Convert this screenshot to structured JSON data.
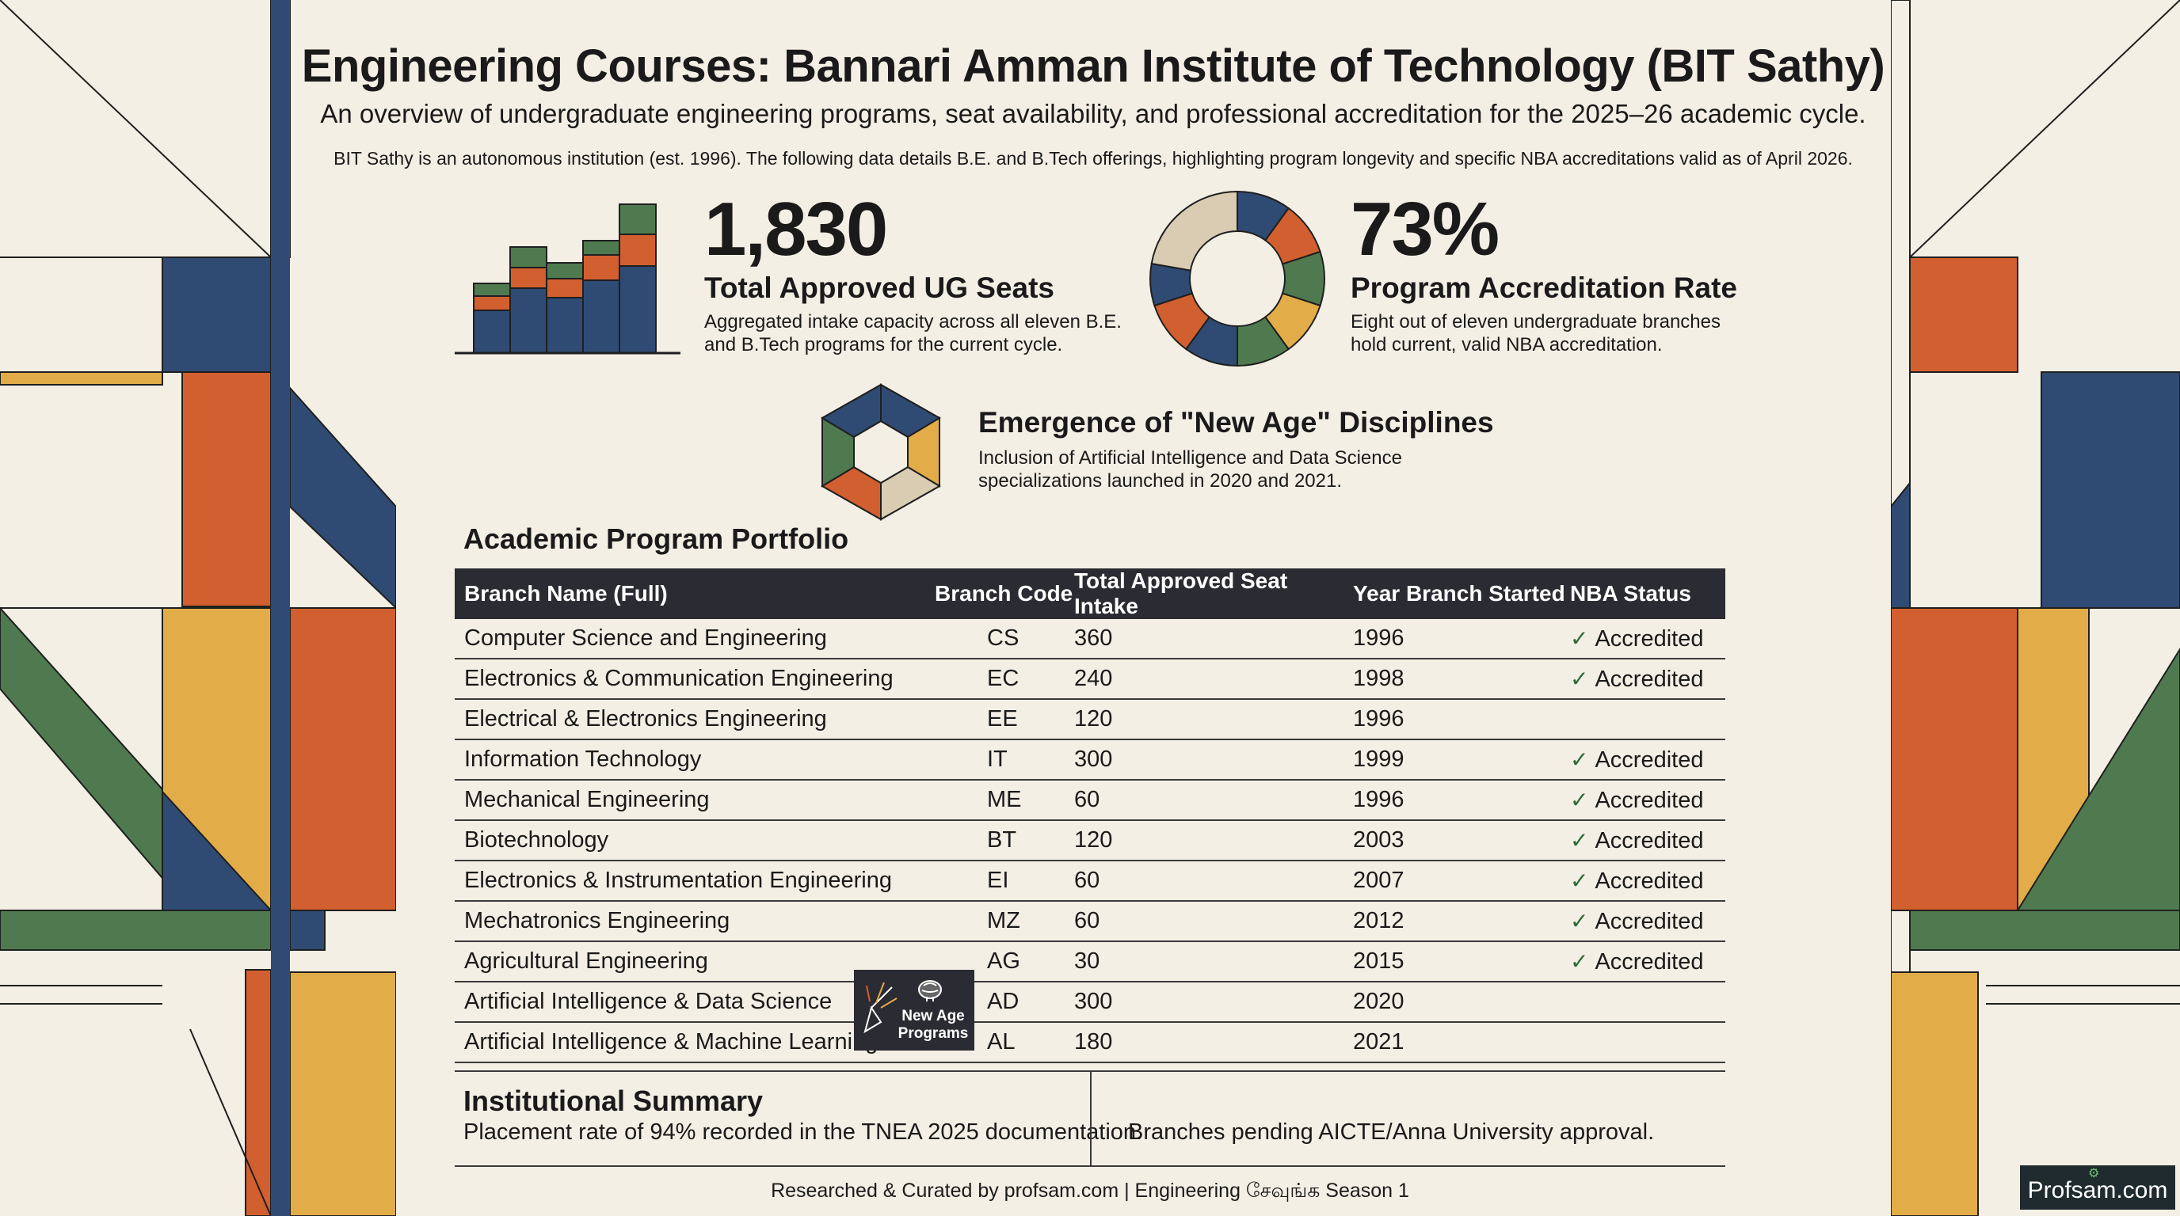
{
  "header": {
    "title": "Engineering Courses: Bannari Amman Institute of Technology (BIT Sathy)",
    "subtitle": "An overview of undergraduate engineering programs, seat availability, and professional accreditation for the 2025–26 academic cycle.",
    "intro": "BIT Sathy is an autonomous institution (est. 1996). The following data details B.E. and B.Tech offerings, highlighting program longevity and specific NBA accreditations valid as of April 2026."
  },
  "stats": {
    "seats": {
      "icon": "stacked-bar-chart-icon",
      "value": "1,830",
      "label": "Total Approved UG Seats",
      "description_line1": "Aggregated intake capacity across all eleven B.E.",
      "description_line2": "and B.Tech programs for the current cycle."
    },
    "accreditation": {
      "icon": "donut-chart-icon",
      "value": "73%",
      "label": "Program Accreditation Rate",
      "description_line1": "Eight out of eleven undergraduate branches",
      "description_line2": "hold current, valid NBA accreditation."
    }
  },
  "feature": {
    "icon": "hexagon-aperture-icon",
    "title": "Emergence of \"New Age\" Disciplines",
    "description_line1": "Inclusion of Artificial Intelligence and Data Science",
    "description_line2": "specializations launched in 2020 and 2021."
  },
  "portfolio": {
    "heading": "Academic Program Portfolio",
    "columns": [
      "Branch Name (Full)",
      "Branch Code",
      "Total Approved Seat Intake",
      "Year Branch Started",
      "NBA Status"
    ],
    "rows": [
      {
        "name": "Computer Science and Engineering",
        "code": "CS",
        "seats": "360",
        "year": "1996",
        "nba": "Accredited"
      },
      {
        "name": "Electronics & Communication Engineering",
        "code": "EC",
        "seats": "240",
        "year": "1998",
        "nba": "Accredited"
      },
      {
        "name": "Electrical & Electronics Engineering",
        "code": "EE",
        "seats": "120",
        "year": "1996",
        "nba": ""
      },
      {
        "name": "Information Technology",
        "code": "IT",
        "seats": "300",
        "year": "1999",
        "nba": "Accredited"
      },
      {
        "name": "Mechanical Engineering",
        "code": "ME",
        "seats": "60",
        "year": "1996",
        "nba": "Accredited"
      },
      {
        "name": "Biotechnology",
        "code": "BT",
        "seats": "120",
        "year": "2003",
        "nba": "Accredited"
      },
      {
        "name": "Electronics & Instrumentation Engineering",
        "code": "EI",
        "seats": "60",
        "year": "2007",
        "nba": "Accredited"
      },
      {
        "name": "Mechatronics Engineering",
        "code": "MZ",
        "seats": "60",
        "year": "2012",
        "nba": "Accredited"
      },
      {
        "name": "Agricultural Engineering",
        "code": "AG",
        "seats": "30",
        "year": "2015",
        "nba": "Accredited"
      },
      {
        "name": "Artificial Intelligence & Data Science",
        "code": "AD",
        "seats": "300",
        "year": "2020",
        "nba": ""
      },
      {
        "name": "Artificial Intelligence & Machine Learning",
        "code": "AL",
        "seats": "180",
        "year": "2021",
        "nba": ""
      }
    ],
    "new_age_badge_line1": "New Age",
    "new_age_badge_line2": "Programs",
    "new_age_badge_icon": "cursor-sparkle-icon"
  },
  "summary": {
    "title": "Institutional Summary",
    "left_text": "Placement rate of 94% recorded in the TNEA 2025 documentation.",
    "right_text": "Branches pending AICTE/Anna University approval."
  },
  "footer": {
    "credit": "Researched & Curated by profsam.com | Engineering சேவுங்க Season 1",
    "brand": "Profsam.com",
    "brand_icon": "robot-icon"
  },
  "colors": {
    "background": "#f3efe4",
    "navy": "#2f4b73",
    "orange": "#d25f2f",
    "green": "#4f7a4f",
    "mustard": "#e2ad48",
    "beige": "#d9ccb2",
    "header_dark": "#2b2b33",
    "check_green": "#2f6b35"
  }
}
